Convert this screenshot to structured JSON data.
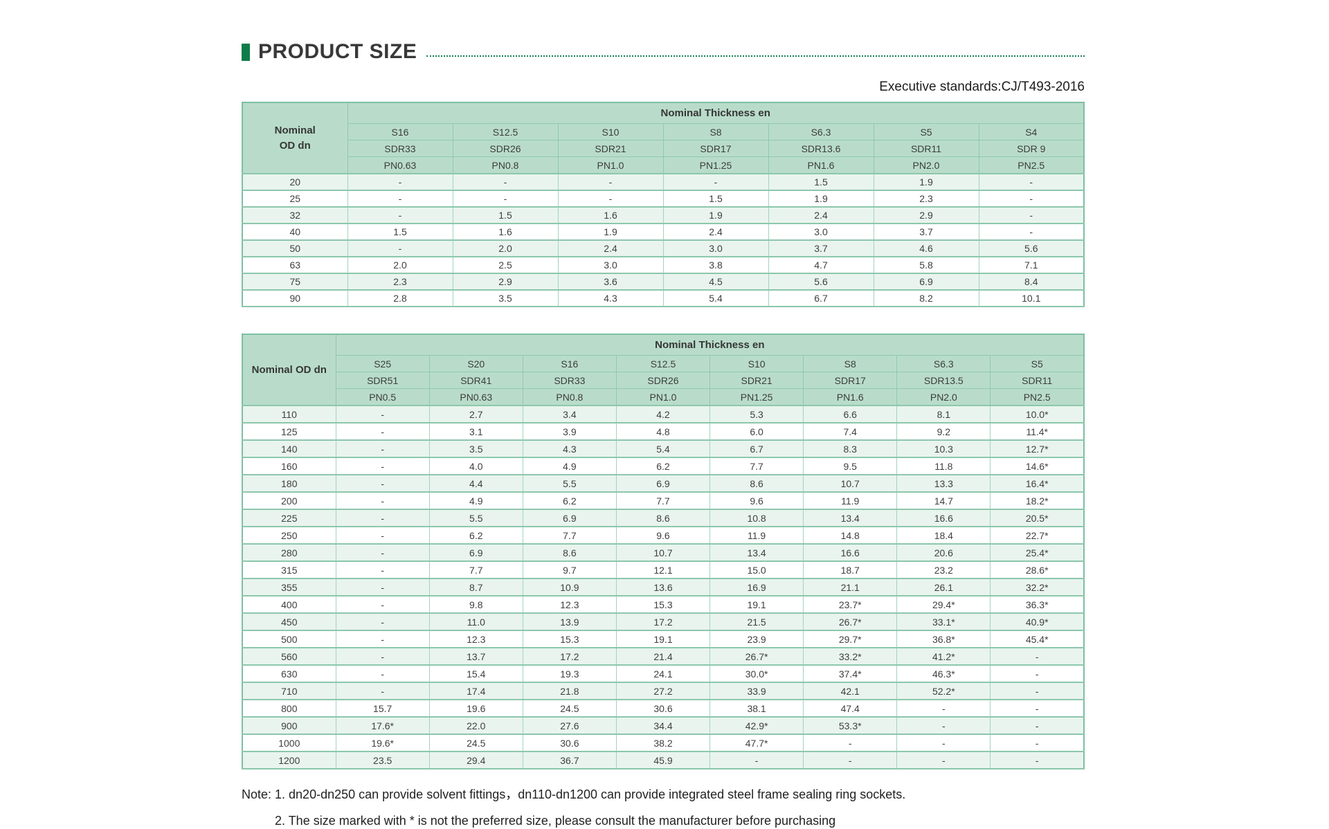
{
  "header": {
    "title": "PRODUCT SIZE",
    "standard": "Executive standards:CJ/T493-2016"
  },
  "tables": {
    "small": {
      "row_header": "Nominal\nOD dn",
      "span_header": "Nominal Thickness en",
      "columns": [
        {
          "s": "S16",
          "sdr": "SDR33",
          "pn": "PN0.63"
        },
        {
          "s": "S12.5",
          "sdr": "SDR26",
          "pn": "PN0.8"
        },
        {
          "s": "S10",
          "sdr": "SDR21",
          "pn": "PN1.0"
        },
        {
          "s": "S8",
          "sdr": "SDR17",
          "pn": "PN1.25"
        },
        {
          "s": "S6.3",
          "sdr": "SDR13.6",
          "pn": "PN1.6"
        },
        {
          "s": "S5",
          "sdr": "SDR11",
          "pn": "PN2.0"
        },
        {
          "s": "S4",
          "sdr": "SDR 9",
          "pn": "PN2.5"
        }
      ],
      "rows": [
        {
          "dn": "20",
          "values": [
            "-",
            "-",
            "-",
            "-",
            "1.5",
            "1.9",
            "-"
          ]
        },
        {
          "dn": "25",
          "values": [
            "-",
            "-",
            "-",
            "1.5",
            "1.9",
            "2.3",
            "-"
          ]
        },
        {
          "dn": "32",
          "values": [
            "-",
            "1.5",
            "1.6",
            "1.9",
            "2.4",
            "2.9",
            "-"
          ]
        },
        {
          "dn": "40",
          "values": [
            "1.5",
            "1.6",
            "1.9",
            "2.4",
            "3.0",
            "3.7",
            "-"
          ]
        },
        {
          "dn": "50",
          "values": [
            "-",
            "2.0",
            "2.4",
            "3.0",
            "3.7",
            "4.6",
            "5.6"
          ]
        },
        {
          "dn": "63",
          "values": [
            "2.0",
            "2.5",
            "3.0",
            "3.8",
            "4.7",
            "5.8",
            "7.1"
          ]
        },
        {
          "dn": "75",
          "values": [
            "2.3",
            "2.9",
            "3.6",
            "4.5",
            "5.6",
            "6.9",
            "8.4"
          ]
        },
        {
          "dn": "90",
          "values": [
            "2.8",
            "3.5",
            "4.3",
            "5.4",
            "6.7",
            "8.2",
            "10.1"
          ]
        }
      ]
    },
    "large": {
      "row_header": "Nominal OD dn",
      "span_header": "Nominal Thickness en",
      "columns": [
        {
          "s": "S25",
          "sdr": "SDR51",
          "pn": "PN0.5"
        },
        {
          "s": "S20",
          "sdr": "SDR41",
          "pn": "PN0.63"
        },
        {
          "s": "S16",
          "sdr": "SDR33",
          "pn": "PN0.8"
        },
        {
          "s": "S12.5",
          "sdr": "SDR26",
          "pn": "PN1.0"
        },
        {
          "s": "S10",
          "sdr": "SDR21",
          "pn": "PN1.25"
        },
        {
          "s": "S8",
          "sdr": "SDR17",
          "pn": "PN1.6"
        },
        {
          "s": "S6.3",
          "sdr": "SDR13.5",
          "pn": "PN2.0"
        },
        {
          "s": "S5",
          "sdr": "SDR11",
          "pn": "PN2.5"
        }
      ],
      "rows": [
        {
          "dn": "110",
          "values": [
            "-",
            "2.7",
            "3.4",
            "4.2",
            "5.3",
            "6.6",
            "8.1",
            "10.0*"
          ]
        },
        {
          "dn": "125",
          "values": [
            "-",
            "3.1",
            "3.9",
            "4.8",
            "6.0",
            "7.4",
            "9.2",
            "11.4*"
          ]
        },
        {
          "dn": "140",
          "values": [
            "-",
            "3.5",
            "4.3",
            "5.4",
            "6.7",
            "8.3",
            "10.3",
            "12.7*"
          ]
        },
        {
          "dn": "160",
          "values": [
            "-",
            "4.0",
            "4.9",
            "6.2",
            "7.7",
            "9.5",
            "11.8",
            "14.6*"
          ]
        },
        {
          "dn": "180",
          "values": [
            "-",
            "4.4",
            "5.5",
            "6.9",
            "8.6",
            "10.7",
            "13.3",
            "16.4*"
          ]
        },
        {
          "dn": "200",
          "values": [
            "-",
            "4.9",
            "6.2",
            "7.7",
            "9.6",
            "11.9",
            "14.7",
            "18.2*"
          ]
        },
        {
          "dn": "225",
          "values": [
            "-",
            "5.5",
            "6.9",
            "8.6",
            "10.8",
            "13.4",
            "16.6",
            "20.5*"
          ]
        },
        {
          "dn": "250",
          "values": [
            "-",
            "6.2",
            "7.7",
            "9.6",
            "11.9",
            "14.8",
            "18.4",
            "22.7*"
          ]
        },
        {
          "dn": "280",
          "values": [
            "-",
            "6.9",
            "8.6",
            "10.7",
            "13.4",
            "16.6",
            "20.6",
            "25.4*"
          ]
        },
        {
          "dn": "315",
          "values": [
            "-",
            "7.7",
            "9.7",
            "12.1",
            "15.0",
            "18.7",
            "23.2",
            "28.6*"
          ]
        },
        {
          "dn": "355",
          "values": [
            "-",
            "8.7",
            "10.9",
            "13.6",
            "16.9",
            "21.1",
            "26.1",
            "32.2*"
          ]
        },
        {
          "dn": "400",
          "values": [
            "-",
            "9.8",
            "12.3",
            "15.3",
            "19.1",
            "23.7*",
            "29.4*",
            "36.3*"
          ]
        },
        {
          "dn": "450",
          "values": [
            "-",
            "11.0",
            "13.9",
            "17.2",
            "21.5",
            "26.7*",
            "33.1*",
            "40.9*"
          ]
        },
        {
          "dn": "500",
          "values": [
            "-",
            "12.3",
            "15.3",
            "19.1",
            "23.9",
            "29.7*",
            "36.8*",
            "45.4*"
          ]
        },
        {
          "dn": "560",
          "values": [
            "-",
            "13.7",
            "17.2",
            "21.4",
            "26.7*",
            "33.2*",
            "41.2*",
            "-"
          ]
        },
        {
          "dn": "630",
          "values": [
            "-",
            "15.4",
            "19.3",
            "24.1",
            "30.0*",
            "37.4*",
            "46.3*",
            "-"
          ]
        },
        {
          "dn": "710",
          "values": [
            "-",
            "17.4",
            "21.8",
            "27.2",
            "33.9",
            "42.1",
            "52.2*",
            "-"
          ]
        },
        {
          "dn": "800",
          "values": [
            "15.7",
            "19.6",
            "24.5",
            "30.6",
            "38.1",
            "47.4",
            "-",
            "-"
          ]
        },
        {
          "dn": "900",
          "values": [
            "17.6*",
            "22.0",
            "27.6",
            "34.4",
            "42.9*",
            "53.3*",
            "-",
            "-"
          ]
        },
        {
          "dn": "1000",
          "values": [
            "19.6*",
            "24.5",
            "30.6",
            "38.2",
            "47.7*",
            "-",
            "-",
            "-"
          ]
        },
        {
          "dn": "1200",
          "values": [
            "23.5",
            "29.4",
            "36.7",
            "45.9",
            "-",
            "-",
            "-",
            "-"
          ]
        }
      ]
    }
  },
  "notes": [
    "Note: 1. dn20-dn250 can provide solvent fittings，dn110-dn1200 can provide integrated steel frame sealing ring sockets.",
    "2. The size marked with * is not the preferred size, please consult the manufacturer before purchasing"
  ],
  "colors": {
    "accent_green": "#0e7c4a",
    "table_header_bg": "#b9dcca",
    "row_stripe_bg": "#e9f4ee",
    "table_border": "#8cc7ac",
    "title_text": "#383838",
    "body_text": "#3f3f3f"
  }
}
